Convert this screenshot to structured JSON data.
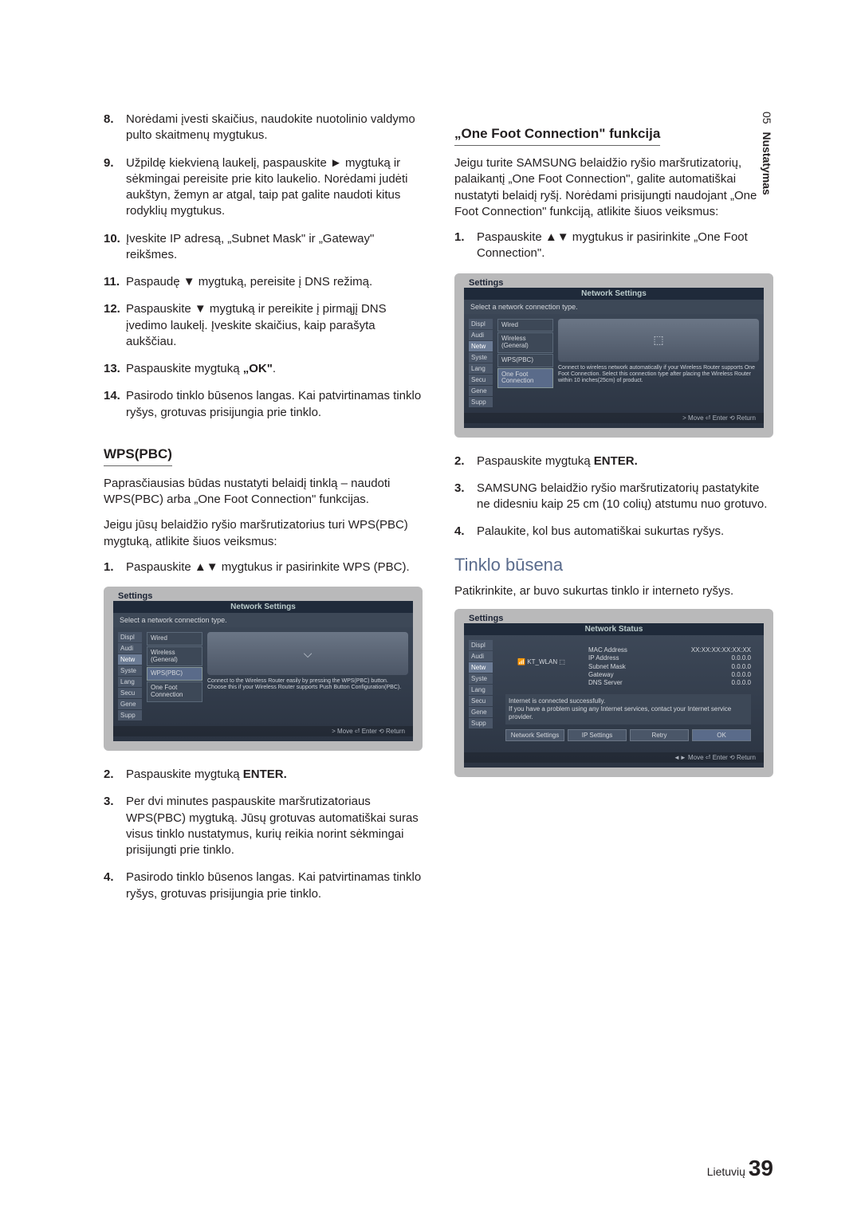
{
  "sideTab": {
    "chapter": "05",
    "label": "Nustatymas"
  },
  "leftCol": {
    "steps1": [
      {
        "n": "8.",
        "t": "Norėdami įvesti skaičius, naudokite nuotolinio valdymo pulto skaitmenų mygtukus."
      },
      {
        "n": "9.",
        "t": "Užpildę kiekvieną laukelį, paspauskite ► mygtuką ir sėkmingai pereisite prie kito laukelio. Norėdami judėti aukštyn, žemyn ar atgal, taip pat galite naudoti kitus rodyklių mygtukus."
      },
      {
        "n": "10.",
        "t": "Įveskite IP adresą, „Subnet Mask\" ir „Gateway\" reikšmes."
      },
      {
        "n": "11.",
        "t": "Paspaudę ▼ mygtuką, pereisite į DNS režimą."
      },
      {
        "n": "12.",
        "t": "Paspauskite ▼ mygtuką ir pereikite į pirmąjį DNS įvedimo laukelį. Įveskite skaičius, kaip parašyta aukščiau."
      },
      {
        "n": "13.",
        "t": "Paspauskite mygtuką <b>„OK\"</b>."
      },
      {
        "n": "14.",
        "t": "Pasirodo tinklo būsenos langas. Kai patvirtinamas tinklo ryšys, grotuvas prisijungia prie tinklo."
      }
    ],
    "wps": {
      "heading": "WPS(PBC)",
      "p1": "Paprasčiausias būdas nustatyti belaidį tinklą – naudoti WPS(PBC) arba „One Foot Connection\" funkcijas.",
      "p2": "Jeigu jūsų belaidžio ryšio maršrutizatorius turi WPS(PBC) mygtuką, atlikite šiuos veiksmus:",
      "step1": {
        "n": "1.",
        "t": "Paspauskite ▲▼ mygtukus ir pasirinkite WPS (PBC)."
      }
    },
    "panel1": {
      "title": "Settings",
      "innerTitle": "Network Settings",
      "instr": "Select a network connection type.",
      "side": [
        "Displ",
        "Audi",
        "Netw",
        "Syste",
        "Lang",
        "Secu",
        "Gene",
        "Supp"
      ],
      "opts": [
        "Wired",
        "Wireless (General)",
        "WPS(PBC)",
        "One Foot Connection"
      ],
      "selIndex": 2,
      "desc": "Connect to the Wireless Router easily by pressing the WPS(PBC) button. Choose this if your Wireless Router supports Push Button Configuration(PBC).",
      "icon": "⌵",
      "foot": "> Move   ⏎ Enter   ⟲ Return"
    },
    "steps2": [
      {
        "n": "2.",
        "t": "Paspauskite mygtuką <b>ENTER.</b>"
      },
      {
        "n": "3.",
        "t": "Per dvi minutes paspauskite maršrutizatoriaus WPS(PBC) mygtuką. Jūsų grotuvas automatiškai suras visus tinklo nustatymus, kurių reikia norint sėkmingai prisijungti prie tinklo."
      },
      {
        "n": "4.",
        "t": "Pasirodo tinklo būsenos langas. Kai patvirtinamas tinklo ryšys, grotuvas prisijungia prie tinklo."
      }
    ]
  },
  "rightCol": {
    "ofc": {
      "heading": "„One Foot Connection\" funkcija",
      "p1": "Jeigu turite SAMSUNG belaidžio ryšio maršrutizatorių, palaikantį „One Foot Connection\", galite automatiškai nustatyti belaidį ryšį. Norėdami prisijungti naudojant „One Foot Connection\" funkciją, atlikite šiuos veiksmus:",
      "step1": {
        "n": "1.",
        "t": "Paspauskite ▲▼ mygtukus ir pasirinkite „One Foot Connection\"."
      }
    },
    "panel2": {
      "title": "Settings",
      "innerTitle": "Network Settings",
      "instr": "Select a network connection type.",
      "side": [
        "Displ",
        "Audi",
        "Netw",
        "Syste",
        "Lang",
        "Secu",
        "Gene",
        "Supp"
      ],
      "opts": [
        "Wired",
        "Wireless (General)",
        "WPS(PBC)",
        "One Foot Connection"
      ],
      "selIndex": 3,
      "desc": "Connect to wireless network automatically if your Wireless Router supports One Foot Connection. Select this connection type after placing the Wireless Router within 10 inches(25cm) of product.",
      "icon": "⬚",
      "foot": "> Move   ⏎ Enter   ⟲ Return"
    },
    "steps2": [
      {
        "n": "2.",
        "t": "Paspauskite mygtuką <b>ENTER.</b>"
      },
      {
        "n": "3.",
        "t": "SAMSUNG belaidžio ryšio maršrutizatorių pastatykite ne didesniu kaip 25 cm (10 colių) atstumu nuo grotuvo."
      },
      {
        "n": "4.",
        "t": "Palaukite, kol bus automatiškai sukurtas ryšys."
      }
    ],
    "status": {
      "heading": "Tinklo būsena",
      "p1": "Patikrinkite, ar buvo sukurtas tinklo ir interneto ryšys."
    },
    "panel3": {
      "title": "Settings",
      "innerTitle": "Network Status",
      "side": [
        "Displ",
        "Audi",
        "Netw",
        "Syste",
        "Lang",
        "Secu",
        "Gene",
        "Supp"
      ],
      "ssid": "KT_WLAN",
      "grid": [
        [
          "MAC Address",
          "XX:XX:XX:XX:XX:XX"
        ],
        [
          "IP Address",
          "0.0.0.0"
        ],
        [
          "Subnet Mask",
          "0.0.0.0"
        ],
        [
          "Gateway",
          "0.0.0.0"
        ],
        [
          "DNS Server",
          "0.0.0.0"
        ]
      ],
      "msg1": "Internet is connected successfully.",
      "msg2": "If you have a problem using any Internet services, contact your Internet service provider.",
      "btns": [
        "Network Settings",
        "IP Settings",
        "Retry",
        "OK"
      ],
      "foot": "◄► Move   ⏎ Enter   ⟲ Return"
    }
  },
  "footer": {
    "lang": "Lietuvių",
    "page": "39"
  }
}
